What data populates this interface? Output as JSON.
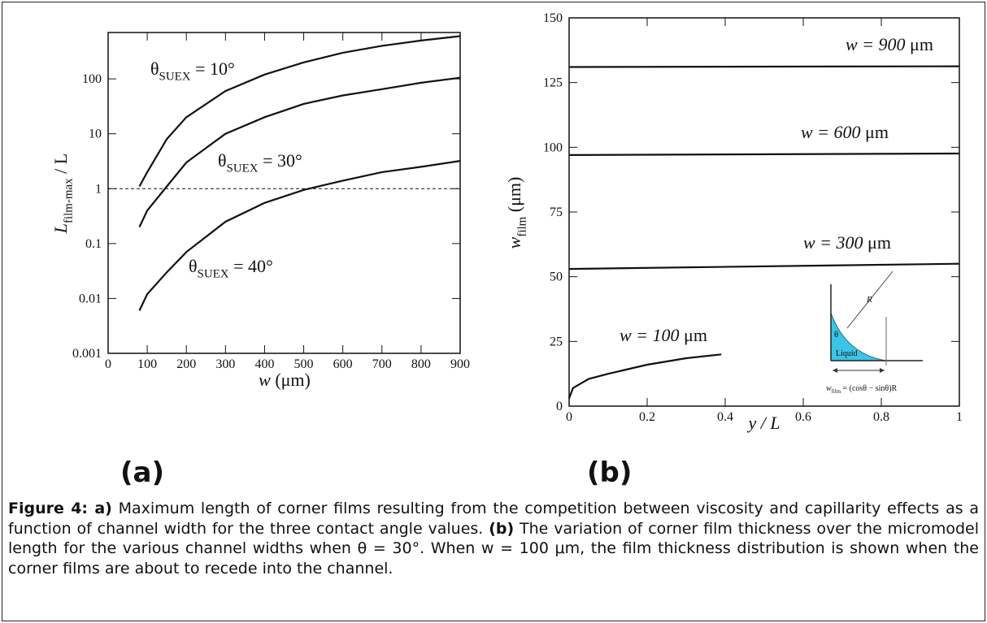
{
  "chart_data": [
    {
      "type": "line",
      "log_y": true,
      "xlabel": {
        "main": "w",
        "tail": " (μm)"
      },
      "ylabel": {
        "main": "L",
        "sub": "film-max",
        "tail": " / L"
      },
      "xlim": [
        0,
        900
      ],
      "ylim": [
        0.001,
        700
      ],
      "xticks": [
        0,
        100,
        200,
        300,
        400,
        500,
        600,
        700,
        800,
        900
      ],
      "yticks": [
        0.001,
        0.01,
        0.1,
        1,
        10,
        100
      ],
      "hline": 1,
      "x": [
        80,
        100,
        150,
        200,
        300,
        400,
        500,
        600,
        700,
        800,
        900
      ],
      "series": [
        {
          "label": {
            "main": "θ",
            "sub": "SUEX",
            "tail": " = 10°"
          },
          "color": "#111111",
          "values": [
            1.1,
            2,
            8,
            20,
            60,
            120,
            200,
            300,
            400,
            500,
            600
          ]
        },
        {
          "label": {
            "main": "θ",
            "sub": "SUEX",
            "tail": " = 30°"
          },
          "color": "#111111",
          "values": [
            0.2,
            0.4,
            1.1,
            3,
            10,
            20,
            35,
            50,
            65,
            85,
            105
          ]
        },
        {
          "label": {
            "main": "θ",
            "sub": "SUEX",
            "tail": " = 40°"
          },
          "color": "#111111",
          "values": [
            0.006,
            0.012,
            0.03,
            0.07,
            0.25,
            0.55,
            0.95,
            1.4,
            2,
            2.5,
            3.2
          ]
        }
      ]
    },
    {
      "type": "line",
      "log_y": false,
      "xlabel": {
        "main": "y / L"
      },
      "ylabel": {
        "main": "w",
        "sub": "film",
        "tail": " (μm)"
      },
      "xlim": [
        0,
        1
      ],
      "ylim": [
        0,
        150
      ],
      "xticks": [
        0,
        0.2,
        0.4,
        0.6,
        0.8,
        1
      ],
      "yticks": [
        0,
        25,
        50,
        75,
        100,
        125,
        150
      ],
      "series": [
        {
          "label": {
            "main": "w = 900",
            "tail": " μm"
          },
          "color": "#111111",
          "x": [
            0,
            1
          ],
          "values": [
            131,
            131.3
          ]
        },
        {
          "label": {
            "main": "w = 600",
            "tail": " μm"
          },
          "color": "#111111",
          "x": [
            0,
            1
          ],
          "values": [
            97,
            97.6
          ]
        },
        {
          "label": {
            "main": "w = 300",
            "tail": " μm"
          },
          "color": "#111111",
          "x": [
            0,
            1
          ],
          "values": [
            53,
            55
          ]
        },
        {
          "label": {
            "main": "w = 100",
            "tail": " μm"
          },
          "color": "#111111",
          "x": [
            0,
            0.01,
            0.05,
            0.1,
            0.2,
            0.3,
            0.39
          ],
          "values": [
            3,
            7,
            10.5,
            12.5,
            16,
            18.5,
            20
          ]
        }
      ]
    }
  ],
  "inset": {
    "R": "R",
    "theta": "θ",
    "liquid": "Liquid",
    "formula": {
      "main": "w",
      "sub": "film",
      "tail": " = (cosθ − sinθ)R"
    }
  },
  "panel_labels": [
    "(a)",
    "(b)"
  ],
  "caption": {
    "a_label": "Figure 4: a)",
    "a_text": "Maximum length of corner films resulting from the competition between viscosity and capillarity effects as a function of channel width for the three contact angle values.",
    "b_label": "(b)",
    "b_text": "The variation of corner film thickness over the micromodel length for the various channel widths when θ = 30°.  When w = 100 μm, the film thickness distribution is shown when the corner films are about to recede into the channel."
  }
}
